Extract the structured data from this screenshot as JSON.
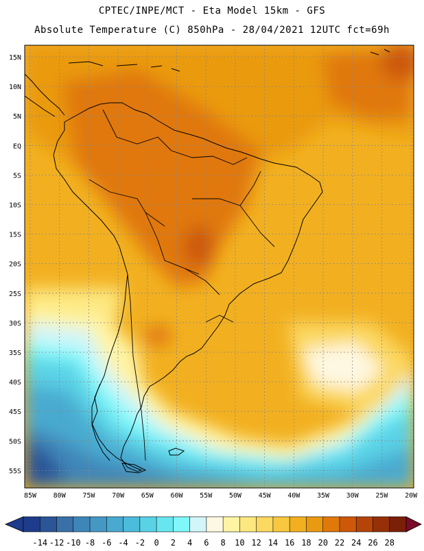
{
  "header": {
    "line1": "CPTEC/INPE/MCT -  Eta Model 15km - GFS",
    "line2": "Absolute Temperature (C) 850hPa - 28/04/2021 12UTC fct=69h"
  },
  "map": {
    "lat_labels": [
      "15N",
      "10N",
      "5N",
      "EQ",
      "5S",
      "10S",
      "15S",
      "20S",
      "25S",
      "30S",
      "35S",
      "40S",
      "45S",
      "50S",
      "55S"
    ],
    "lon_labels": [
      "85W",
      "80W",
      "75W",
      "70W",
      "65W",
      "60W",
      "55W",
      "50W",
      "45W",
      "40W",
      "35W",
      "30W",
      "25W",
      "20W"
    ]
  },
  "colorbar": {
    "labels": [
      "-14",
      "-12",
      "-10",
      "-8",
      "-6",
      "-4",
      "-2",
      "0",
      "2",
      "4",
      "6",
      "8",
      "10",
      "12",
      "14",
      "16",
      "18",
      "20",
      "22",
      "24",
      "26",
      "28"
    ],
    "colors": [
      "#1e3c8c",
      "#2a5597",
      "#3a70a8",
      "#3f86b8",
      "#4598c4",
      "#48aad0",
      "#4cbcdc",
      "#5ad2e6",
      "#68e6f0",
      "#80f8fa",
      "#d2f5fa",
      "#fef8e2",
      "#fff4a4",
      "#fde880",
      "#fbd860",
      "#f7c840",
      "#f2b020",
      "#ea9a10",
      "#e0780a",
      "#cc5808",
      "#b44408",
      "#963008",
      "#7a2008"
    ],
    "under_color": "#1e3c8c",
    "over_color": "#7a0a28"
  }
}
